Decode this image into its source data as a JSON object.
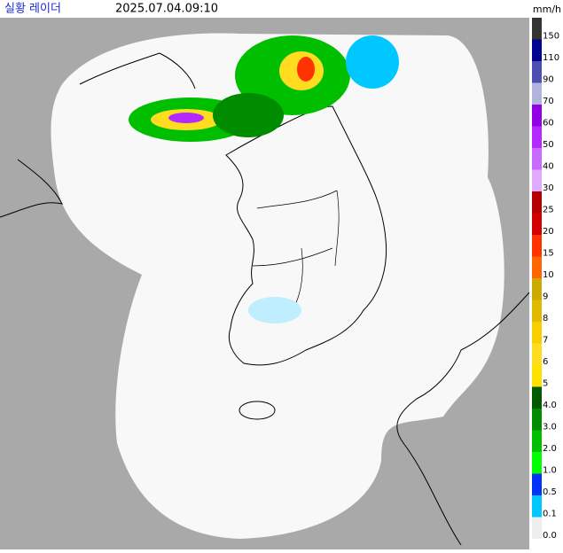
{
  "header": {
    "title": "실황 레이더",
    "timestamp": "2025.07.04.09:10",
    "unit": "mm/h"
  },
  "legend": [
    {
      "label": "150",
      "color": "#333333"
    },
    {
      "label": "110",
      "color": "#000390"
    },
    {
      "label": "90",
      "color": "#4c4eb1"
    },
    {
      "label": "70",
      "color": "#b3b4de"
    },
    {
      "label": "60",
      "color": "#9300e4"
    },
    {
      "label": "50",
      "color": "#b329ff"
    },
    {
      "label": "40",
      "color": "#c969ff"
    },
    {
      "label": "30",
      "color": "#e0a9ff"
    },
    {
      "label": "25",
      "color": "#b40000"
    },
    {
      "label": "20",
      "color": "#d20000"
    },
    {
      "label": "15",
      "color": "#ff3200"
    },
    {
      "label": "10",
      "color": "#ff6600"
    },
    {
      "label": "9",
      "color": "#ccaa00"
    },
    {
      "label": "8",
      "color": "#e0b900"
    },
    {
      "label": "7",
      "color": "#f9cd00"
    },
    {
      "label": "6",
      "color": "#ffdc1f"
    },
    {
      "label": "5",
      "color": "#ffe100"
    },
    {
      "label": "4.0",
      "color": "#005a00"
    },
    {
      "label": "3.0",
      "color": "#008c00"
    },
    {
      "label": "2.0",
      "color": "#00be00"
    },
    {
      "label": "1.0",
      "color": "#00ff00"
    },
    {
      "label": "0.5",
      "color": "#0033f5"
    },
    {
      "label": "0.1",
      "color": "#00c8ff"
    },
    {
      "label": "0.0",
      "color": "#eeeeee"
    }
  ]
}
